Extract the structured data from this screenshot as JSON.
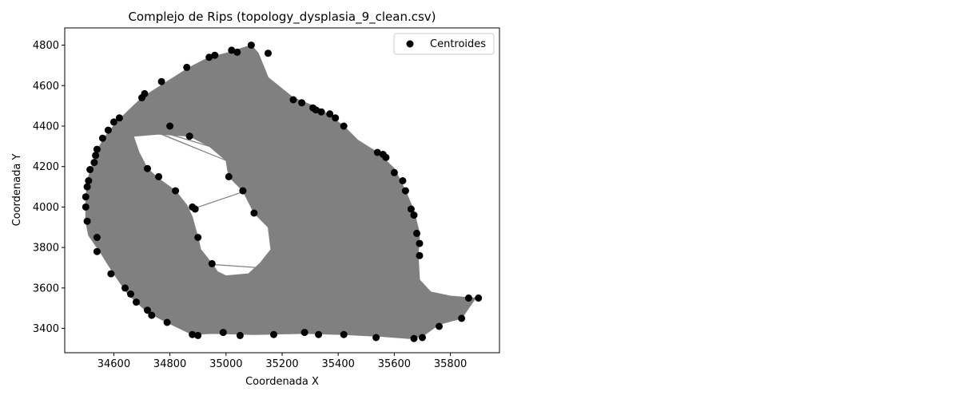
{
  "chart_data": {
    "type": "scatter",
    "title": "Complejo de Rips (topology_dysplasia_9_clean.csv)",
    "xlabel": "Coordenada X",
    "ylabel": "Coordenada Y",
    "xlim": [
      34425,
      35975
    ],
    "ylim": [
      3280,
      4885
    ],
    "xticks": [
      34600,
      34800,
      35000,
      35200,
      35400,
      35600,
      35800
    ],
    "yticks": [
      3400,
      3600,
      3800,
      4000,
      4200,
      4400,
      4600,
      4800
    ],
    "legend": {
      "label": "Centroides",
      "placement": "top-right"
    },
    "colors": {
      "points": "#000000",
      "edges": "#808080",
      "fill": "#808080"
    },
    "outer_boundary": [
      [
        34610,
        4420
      ],
      [
        34700,
        4540
      ],
      [
        34790,
        4620
      ],
      [
        34870,
        4690
      ],
      [
        34940,
        4740
      ],
      [
        35000,
        4760
      ],
      [
        35090,
        4800
      ],
      [
        35115,
        4760
      ],
      [
        35150,
        4640
      ],
      [
        35240,
        4540
      ],
      [
        35330,
        4490
      ],
      [
        35420,
        4400
      ],
      [
        35470,
        4330
      ],
      [
        35540,
        4270
      ],
      [
        35600,
        4190
      ],
      [
        35640,
        4080
      ],
      [
        35670,
        3980
      ],
      [
        35690,
        3870
      ],
      [
        35685,
        3760
      ],
      [
        35690,
        3640
      ],
      [
        35730,
        3580
      ],
      [
        35800,
        3560
      ],
      [
        35890,
        3550
      ],
      [
        35840,
        3450
      ],
      [
        35760,
        3420
      ],
      [
        35700,
        3360
      ],
      [
        35650,
        3350
      ],
      [
        35560,
        3360
      ],
      [
        35420,
        3370
      ],
      [
        35280,
        3375
      ],
      [
        35100,
        3370
      ],
      [
        34950,
        3375
      ],
      [
        34880,
        3370
      ],
      [
        34790,
        3430
      ],
      [
        34720,
        3480
      ],
      [
        34650,
        3570
      ],
      [
        34600,
        3670
      ],
      [
        34550,
        3780
      ],
      [
        34510,
        3860
      ],
      [
        34500,
        3930
      ],
      [
        34500,
        4050
      ],
      [
        34510,
        4150
      ],
      [
        34540,
        4280
      ],
      [
        34570,
        4350
      ]
    ],
    "hole_boundary": [
      [
        34670,
        4350
      ],
      [
        34760,
        4360
      ],
      [
        34870,
        4350
      ],
      [
        34940,
        4300
      ],
      [
        35000,
        4230
      ],
      [
        35010,
        4150
      ],
      [
        35060,
        4080
      ],
      [
        35100,
        3970
      ],
      [
        35150,
        3900
      ],
      [
        35160,
        3790
      ],
      [
        35120,
        3720
      ],
      [
        35080,
        3670
      ],
      [
        35000,
        3660
      ],
      [
        34970,
        3680
      ],
      [
        34950,
        3720
      ],
      [
        34910,
        3790
      ],
      [
        34900,
        3850
      ],
      [
        34880,
        3950
      ],
      [
        34860,
        4010
      ],
      [
        34820,
        4080
      ],
      [
        34760,
        4140
      ],
      [
        34720,
        4190
      ],
      [
        34690,
        4270
      ]
    ],
    "inner_edges": [
      [
        [
          34880,
          3990
        ],
        [
          35050,
          4070
        ]
      ],
      [
        [
          34910,
          3720
        ],
        [
          35120,
          3700
        ]
      ],
      [
        [
          34650,
          4400
        ],
        [
          34880,
          4400
        ]
      ],
      [
        [
          34710,
          4390
        ],
        [
          34880,
          4360
        ]
      ]
    ],
    "points": [
      [
        34505,
        3930
      ],
      [
        34500,
        4000
      ],
      [
        34500,
        4050
      ],
      [
        34505,
        4100
      ],
      [
        34510,
        4130
      ],
      [
        34515,
        4185
      ],
      [
        34530,
        4220
      ],
      [
        34535,
        4255
      ],
      [
        34540,
        4285
      ],
      [
        34560,
        4340
      ],
      [
        34580,
        4380
      ],
      [
        34600,
        4420
      ],
      [
        34620,
        4440
      ],
      [
        34700,
        4540
      ],
      [
        34710,
        4560
      ],
      [
        34770,
        4620
      ],
      [
        34860,
        4690
      ],
      [
        34940,
        4740
      ],
      [
        34960,
        4750
      ],
      [
        35020,
        4775
      ],
      [
        35040,
        4765
      ],
      [
        35090,
        4800
      ],
      [
        35150,
        4760
      ],
      [
        35240,
        4530
      ],
      [
        35270,
        4515
      ],
      [
        35310,
        4490
      ],
      [
        35320,
        4480
      ],
      [
        35340,
        4470
      ],
      [
        35370,
        4460
      ],
      [
        35390,
        4440
      ],
      [
        35420,
        4400
      ],
      [
        35540,
        4270
      ],
      [
        35560,
        4260
      ],
      [
        35570,
        4245
      ],
      [
        35600,
        4170
      ],
      [
        35630,
        4130
      ],
      [
        35640,
        4080
      ],
      [
        35660,
        3990
      ],
      [
        35670,
        3960
      ],
      [
        35680,
        3870
      ],
      [
        35690,
        3820
      ],
      [
        35690,
        3760
      ],
      [
        35865,
        3550
      ],
      [
        35900,
        3550
      ],
      [
        35840,
        3450
      ],
      [
        35760,
        3410
      ],
      [
        35700,
        3355
      ],
      [
        35670,
        3350
      ],
      [
        35535,
        3355
      ],
      [
        35420,
        3370
      ],
      [
        35330,
        3370
      ],
      [
        35280,
        3380
      ],
      [
        35170,
        3370
      ],
      [
        35050,
        3365
      ],
      [
        34990,
        3380
      ],
      [
        34900,
        3365
      ],
      [
        34880,
        3370
      ],
      [
        34790,
        3430
      ],
      [
        34735,
        3465
      ],
      [
        34720,
        3490
      ],
      [
        34680,
        3530
      ],
      [
        34660,
        3570
      ],
      [
        34640,
        3600
      ],
      [
        34590,
        3670
      ],
      [
        34540,
        3780
      ],
      [
        34540,
        3850
      ],
      [
        34890,
        3990
      ],
      [
        34880,
        4000
      ],
      [
        34900,
        3850
      ],
      [
        34950,
        3720
      ],
      [
        35010,
        4150
      ],
      [
        35060,
        4080
      ],
      [
        35100,
        3970
      ],
      [
        34800,
        4400
      ],
      [
        34870,
        4350
      ],
      [
        34820,
        4080
      ],
      [
        34760,
        4150
      ],
      [
        34720,
        4190
      ]
    ]
  }
}
